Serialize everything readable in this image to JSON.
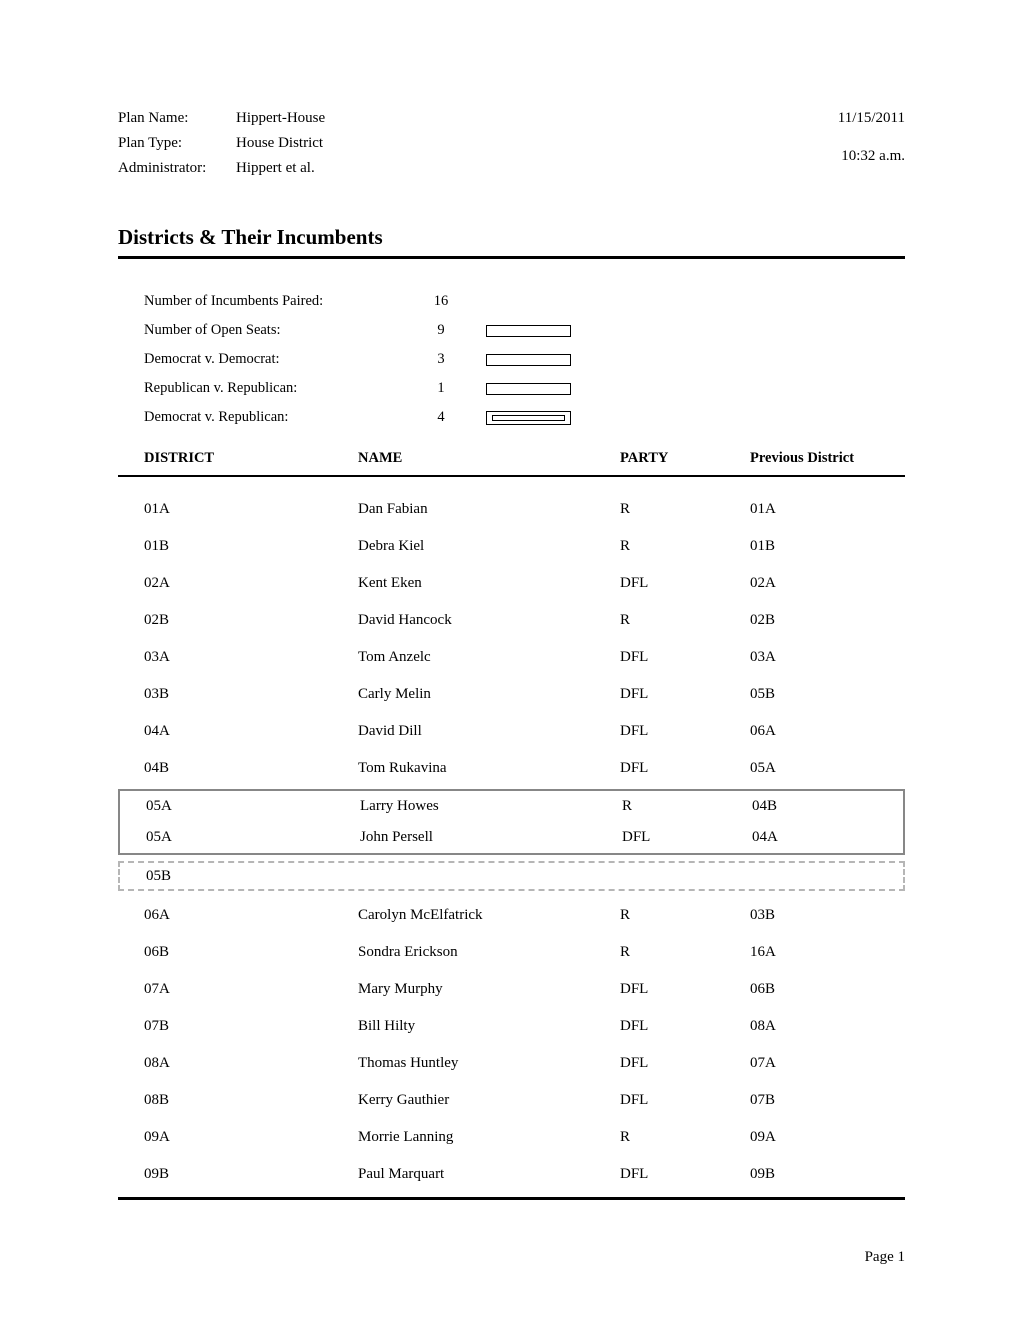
{
  "header": {
    "labels": {
      "plan_name": "Plan Name:",
      "plan_type": "Plan Type:",
      "administrator": "Administrator:"
    },
    "plan_name": "Hippert-House",
    "plan_type": "House District",
    "administrator": "Hippert et al.",
    "date": "11/15/2011",
    "time": "10:32 a.m."
  },
  "title": "Districts & Their Incumbents",
  "summary": {
    "rows": [
      {
        "label": "Number of Incumbents Paired:",
        "value": "16",
        "bar": null
      },
      {
        "label": "Number of Open Seats:",
        "value": "9",
        "bar": {
          "outer_w": 85,
          "outer_h": 12,
          "inner_w": 0,
          "inner_h": 0,
          "double": false
        }
      },
      {
        "label": "Democrat v. Democrat:",
        "value": "3",
        "bar": {
          "outer_w": 85,
          "outer_h": 12,
          "inner_w": 0,
          "inner_h": 0,
          "double": false
        }
      },
      {
        "label": "Republican v. Republican:",
        "value": "1",
        "bar": {
          "outer_w": 85,
          "outer_h": 12,
          "inner_w": 0,
          "inner_h": 0,
          "double": false
        }
      },
      {
        "label": "Democrat v. Republican:",
        "value": "4",
        "bar": {
          "outer_w": 85,
          "outer_h": 14,
          "inner_w": 73,
          "inner_h": 6,
          "double": true
        }
      }
    ]
  },
  "columns": {
    "district": "DISTRICT",
    "name": "NAME",
    "party": "PARTY",
    "prev": "Previous District"
  },
  "table": [
    {
      "kind": "row",
      "district": "01A",
      "name": "Dan Fabian",
      "party": "R",
      "prev": "01A"
    },
    {
      "kind": "row",
      "district": "01B",
      "name": "Debra  Kiel",
      "party": "R",
      "prev": "01B"
    },
    {
      "kind": "row",
      "district": "02A",
      "name": "Kent Eken",
      "party": "DFL",
      "prev": "02A"
    },
    {
      "kind": "row",
      "district": "02B",
      "name": "David Hancock",
      "party": "R",
      "prev": "02B"
    },
    {
      "kind": "row",
      "district": "03A",
      "name": "Tom Anzelc",
      "party": "DFL",
      "prev": "03A"
    },
    {
      "kind": "row",
      "district": "03B",
      "name": "Carly Melin",
      "party": "DFL",
      "prev": "05B"
    },
    {
      "kind": "row",
      "district": "04A",
      "name": "David Dill",
      "party": "DFL",
      "prev": "06A"
    },
    {
      "kind": "row",
      "district": "04B",
      "name": "Tom Rukavina",
      "party": "DFL",
      "prev": "05A"
    },
    {
      "kind": "paired",
      "rows": [
        {
          "district": "05A",
          "name": "Larry Howes",
          "party": "R",
          "prev": "04B"
        },
        {
          "district": "05A",
          "name": "John Persell",
          "party": "DFL",
          "prev": "04A"
        }
      ]
    },
    {
      "kind": "open",
      "district": "05B",
      "name": "",
      "party": "",
      "prev": ""
    },
    {
      "kind": "row",
      "district": "06A",
      "name": "Carolyn McElfatrick",
      "party": "R",
      "prev": "03B"
    },
    {
      "kind": "row",
      "district": "06B",
      "name": "Sondra Erickson",
      "party": "R",
      "prev": "16A"
    },
    {
      "kind": "row",
      "district": "07A",
      "name": "Mary Murphy",
      "party": "DFL",
      "prev": "06B"
    },
    {
      "kind": "row",
      "district": "07B",
      "name": "Bill Hilty",
      "party": "DFL",
      "prev": "08A"
    },
    {
      "kind": "row",
      "district": "08A",
      "name": "Thomas Huntley",
      "party": "DFL",
      "prev": "07A"
    },
    {
      "kind": "row",
      "district": "08B",
      "name": "Kerry Gauthier",
      "party": "DFL",
      "prev": "07B"
    },
    {
      "kind": "row",
      "district": "09A",
      "name": "Morrie Lanning",
      "party": "R",
      "prev": "09A"
    },
    {
      "kind": "row",
      "district": "09B",
      "name": "Paul Marquart",
      "party": "DFL",
      "prev": "09B"
    }
  ],
  "footer": {
    "page": "Page 1"
  },
  "style": {
    "colors": {
      "text": "#000000",
      "paired_border": "#878787",
      "open_border": "#b6b6b6",
      "background": "#ffffff"
    }
  }
}
